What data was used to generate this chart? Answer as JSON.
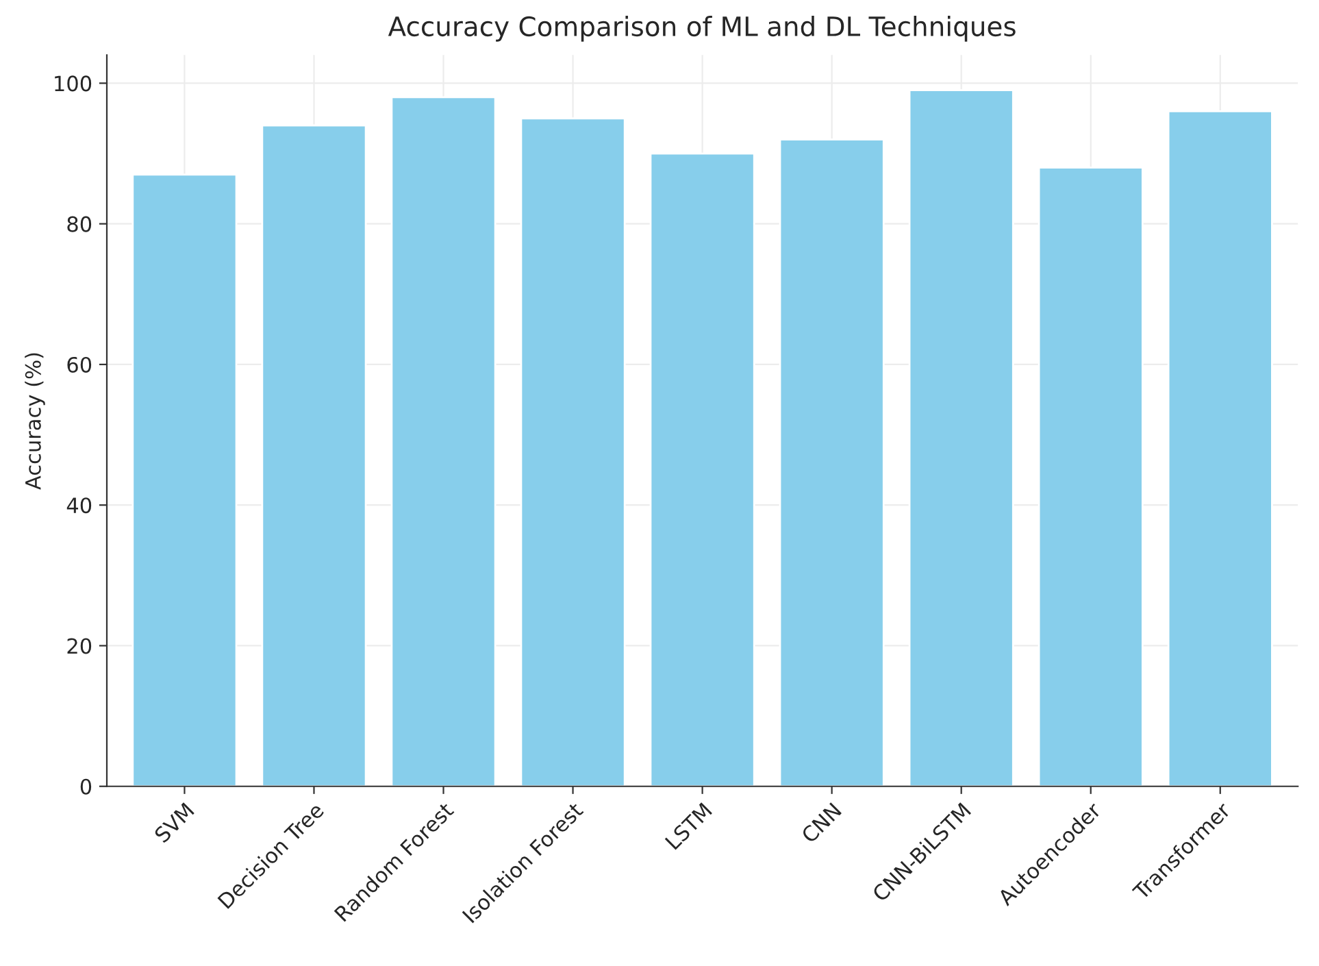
{
  "chart_data": {
    "type": "bar",
    "title": "Accuracy Comparison of ML and DL Techniques",
    "ylabel": "Accuracy (%)",
    "categories": [
      "SVM",
      "Decision Tree",
      "Random Forest",
      "Isolation Forest",
      "LSTM",
      "CNN",
      "CNN-BiLSTM",
      "Autoencoder",
      "Transformer"
    ],
    "values": [
      87,
      94,
      98,
      95,
      90,
      92,
      99,
      88,
      96
    ],
    "color": "#87ceeb",
    "ylim": [
      0,
      104
    ],
    "yticks": [
      0,
      20,
      40,
      60,
      80,
      100
    ],
    "grid": true
  }
}
